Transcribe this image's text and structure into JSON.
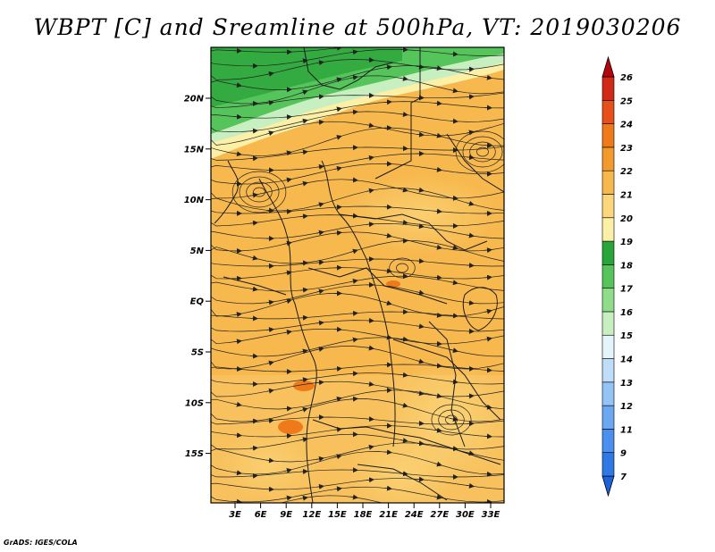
{
  "title": "WBPT [C] and Sreamline at 500hPa, VT: 2019030206",
  "footer": "GrADS: IGES/COLA",
  "map": {
    "lat_labels": [
      "20N",
      "15N",
      "10N",
      "5N",
      "EQ",
      "5S",
      "10S",
      "15S"
    ],
    "lon_labels": [
      "3E",
      "6E",
      "9E",
      "12E",
      "15E",
      "18E",
      "21E",
      "24E",
      "27E",
      "30E",
      "33E"
    ]
  },
  "colorbar": {
    "labels": [
      "7",
      "9",
      "11",
      "12",
      "13",
      "14",
      "15",
      "16",
      "17",
      "18",
      "19",
      "20",
      "21",
      "22",
      "23",
      "24",
      "25",
      "26"
    ],
    "colors": [
      "#1f61d9",
      "#2f78e6",
      "#4a90ee",
      "#6aa9f2",
      "#94c4f6",
      "#bfdcf9",
      "#e4f4fb",
      "#c8efc0",
      "#8fdc8a",
      "#55c45a",
      "#2aa53a",
      "#fbf0a6",
      "#fbd67a",
      "#f7b84e",
      "#f39a2c",
      "#ef7a1a",
      "#e6511a",
      "#d12818",
      "#b4050f"
    ]
  }
}
